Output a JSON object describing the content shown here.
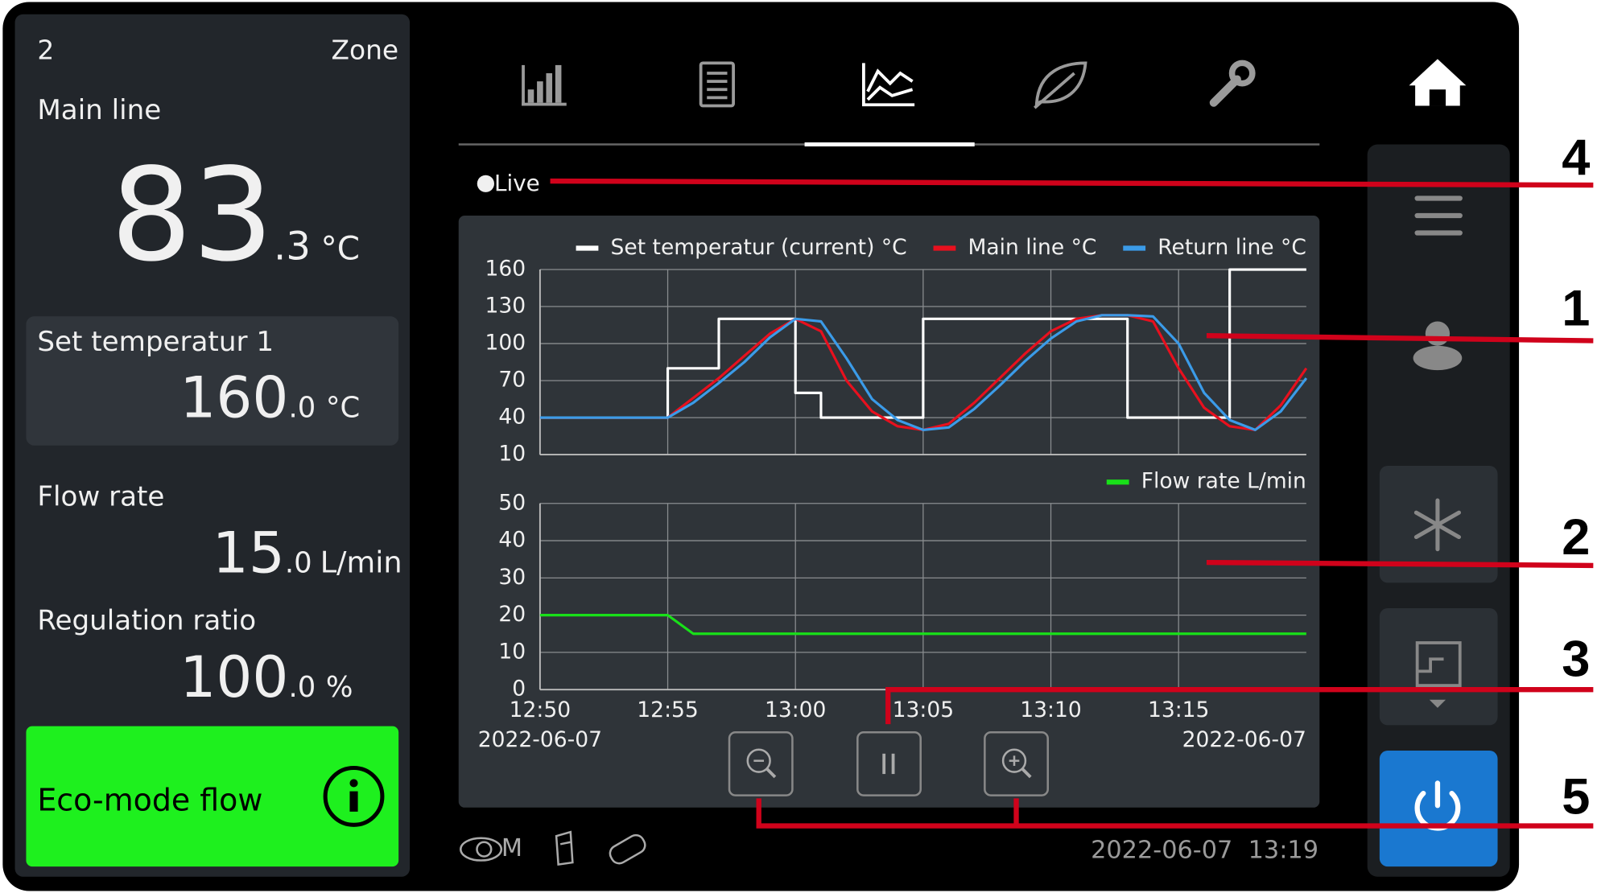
{
  "zone": {
    "number": "2",
    "label": "Zone"
  },
  "main_line": {
    "label": "Main line",
    "value": "83",
    "decimal": ".3",
    "unit": "°C"
  },
  "set_temperature": {
    "label": "Set temperatur 1",
    "value": "160",
    "decimal": ".0",
    "unit": "°C"
  },
  "flow_rate": {
    "label": "Flow rate",
    "value": "15",
    "decimal": ".0",
    "unit": "L/min"
  },
  "regulation_ratio": {
    "label": "Regulation ratio",
    "value": "100",
    "decimal": ".0",
    "unit": "%"
  },
  "eco_mode": {
    "label": "Eco-mode flow"
  },
  "live": "Live",
  "footer": {
    "mode": "M",
    "datetime": "2022-06-07  13:19"
  },
  "callouts": [
    "4",
    "1",
    "2",
    "3",
    "5"
  ],
  "chart_data": [
    {
      "type": "line",
      "xlim": [
        "12:50",
        "13:20"
      ],
      "xticks": [
        "12:50",
        "12:55",
        "13:00",
        "13:05",
        "13:10",
        "13:15"
      ],
      "xtick_labels": false,
      "ylim": [
        10,
        160
      ],
      "yticks": [
        10,
        40,
        70,
        100,
        130,
        160
      ],
      "grid": true,
      "legend": "top-right",
      "series": [
        {
          "name": "Set temperatur (current) °C",
          "color": "#ffffff",
          "x": [
            "12:50",
            "12:55",
            "12:55",
            "12:57",
            "12:57",
            "13:00",
            "13:00",
            "13:01",
            "13:01",
            "13:05",
            "13:05",
            "13:13",
            "13:13",
            "13:17",
            "13:17",
            "13:20"
          ],
          "values": [
            40,
            40,
            80,
            80,
            120,
            120,
            60,
            60,
            40,
            40,
            120,
            120,
            40,
            40,
            160,
            160
          ]
        },
        {
          "name": "Main line °C",
          "color": "#e8101e",
          "x": [
            "12:50",
            "12:51",
            "12:52",
            "12:53",
            "12:54",
            "12:55",
            "12:56",
            "12:57",
            "12:58",
            "12:59",
            "13:00",
            "13:01",
            "13:02",
            "13:03",
            "13:04",
            "13:05",
            "13:06",
            "13:07",
            "13:08",
            "13:09",
            "13:10",
            "13:11",
            "13:12",
            "13:13",
            "13:14",
            "13:15",
            "13:16",
            "13:17",
            "13:18",
            "13:19",
            "13:20"
          ],
          "values": [
            40,
            40,
            40,
            40,
            40,
            40,
            56,
            72,
            90,
            108,
            120,
            110,
            70,
            45,
            33,
            30,
            35,
            52,
            72,
            92,
            110,
            120,
            123,
            123,
            118,
            80,
            48,
            33,
            30,
            50,
            80
          ]
        },
        {
          "name": "Return line °C",
          "color": "#3b9be8",
          "x": [
            "12:50",
            "12:51",
            "12:52",
            "12:53",
            "12:54",
            "12:55",
            "12:56",
            "12:57",
            "12:58",
            "12:59",
            "13:00",
            "13:01",
            "13:02",
            "13:03",
            "13:04",
            "13:05",
            "13:06",
            "13:07",
            "13:08",
            "13:09",
            "13:10",
            "13:11",
            "13:12",
            "13:13",
            "13:14",
            "13:15",
            "13:16",
            "13:17",
            "13:18",
            "13:19",
            "13:20"
          ],
          "values": [
            40,
            40,
            40,
            40,
            40,
            40,
            52,
            68,
            85,
            105,
            120,
            118,
            88,
            55,
            38,
            30,
            32,
            47,
            66,
            86,
            104,
            118,
            123,
            123,
            122,
            100,
            60,
            38,
            30,
            45,
            72
          ]
        }
      ]
    },
    {
      "type": "line",
      "xlim": [
        "12:50",
        "13:20"
      ],
      "xticks": [
        "12:50",
        "12:55",
        "13:00",
        "13:05",
        "13:10",
        "13:15"
      ],
      "xtick_labels": true,
      "dates": [
        "2022-06-07",
        "2022-06-07"
      ],
      "ylim": [
        0,
        50
      ],
      "yticks": [
        0,
        10,
        20,
        30,
        40,
        50
      ],
      "grid": true,
      "legend": "top-right",
      "series": [
        {
          "name": "Flow rate L/min",
          "color": "#19e019",
          "x": [
            "12:50",
            "12:55",
            "12:56",
            "13:20"
          ],
          "values": [
            20,
            20,
            15,
            15
          ]
        }
      ]
    }
  ]
}
